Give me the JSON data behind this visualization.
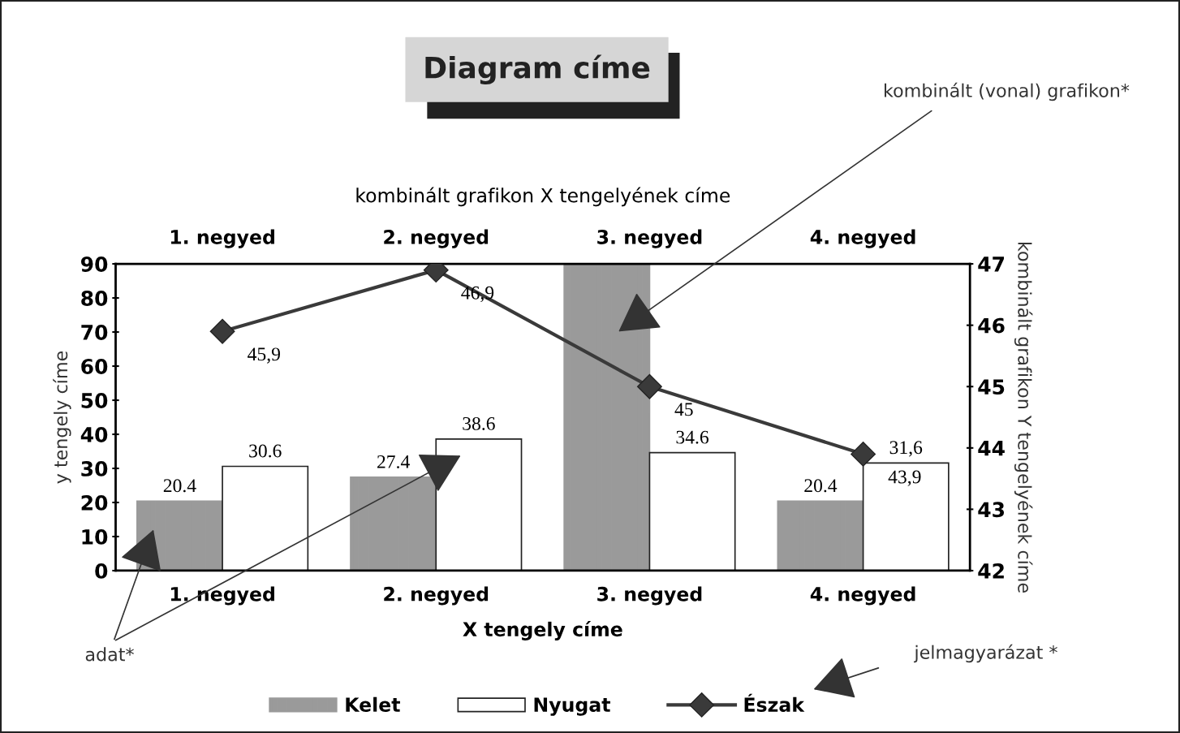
{
  "chart_data": {
    "type": "bar",
    "title": "Diagram címe",
    "categories": [
      "1. negyed",
      "2. negyed",
      "3. negyed",
      "4. negyed"
    ],
    "xlabel": "X tengely címe",
    "x2label": "kombinált grafikon X tengelyének címe",
    "ylabel": "y tengely címe",
    "y2label": "kombinált grafikon Y tengelyének címe",
    "series": [
      {
        "name": "Kelet",
        "color": "#9a9a9a",
        "values": [
          20.4,
          27.4,
          90,
          20.4
        ],
        "value_labels": [
          "20.4",
          "27.4",
          null,
          "20.4"
        ]
      },
      {
        "name": "Nyugat",
        "color": "#ffffff",
        "values": [
          30.6,
          38.6,
          34.6,
          31.6
        ],
        "value_labels": [
          "30.6",
          "38.6",
          "34.6",
          "31,6"
        ]
      },
      {
        "name": "Észak",
        "type": "line",
        "axis": "y2",
        "color": "#3a3a3a",
        "marker": "diamond",
        "values": [
          45.9,
          46.9,
          45,
          43.9
        ],
        "value_labels": [
          "45,9",
          "46,9",
          "45",
          "43,9"
        ]
      }
    ],
    "ylim": [
      0,
      90
    ],
    "yticks": [
      0,
      10,
      20,
      30,
      40,
      50,
      60,
      70,
      80,
      90
    ],
    "y2lim": [
      42,
      47
    ],
    "y2ticks": [
      42,
      43,
      44,
      45,
      46,
      47
    ],
    "grid": false,
    "legend": "bottom",
    "annotations": [
      "kombinált (vonal) grafikon*",
      "adat*",
      "jelmagyarázat *"
    ]
  }
}
